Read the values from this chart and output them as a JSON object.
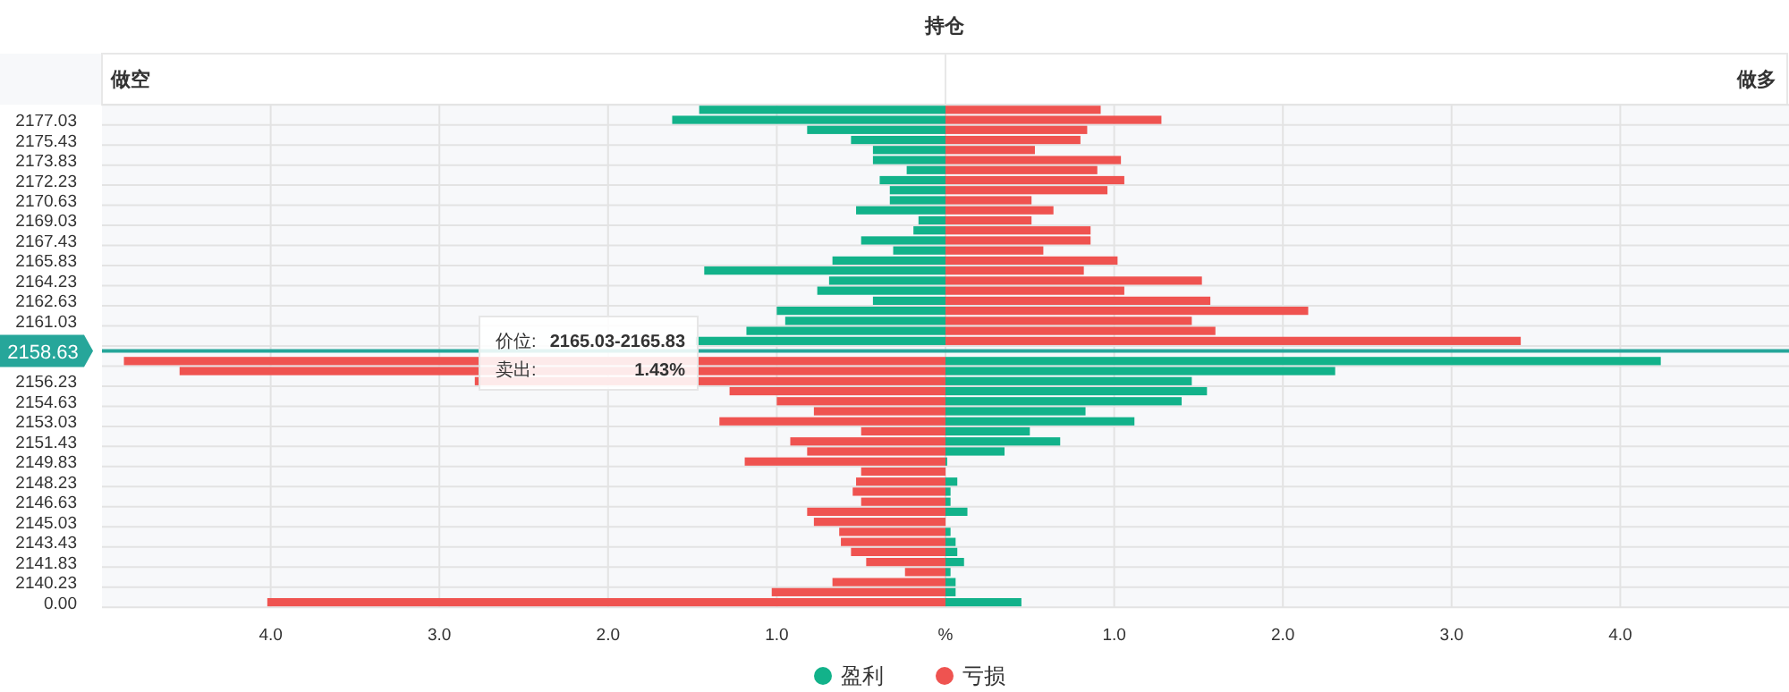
{
  "chart_data": {
    "type": "bar",
    "orientation": "horizontal",
    "title": "持仓",
    "annotations": [
      "做空",
      "做多",
      "价位:",
      "2165.03-2165.83",
      "卖出:",
      "1.43%"
    ],
    "categories": [
      null,
      "2177.03",
      null,
      "2175.43",
      null,
      "2173.83",
      null,
      "2172.23",
      null,
      "2170.63",
      null,
      "2169.03",
      null,
      "2167.43",
      null,
      "2165.83",
      null,
      "2164.23",
      null,
      "2162.63",
      null,
      "2161.03",
      null,
      null,
      "2158.63",
      null,
      null,
      "2156.23",
      null,
      "2154.63",
      null,
      "2153.03",
      null,
      "2151.43",
      null,
      "2149.83",
      null,
      "2148.23",
      null,
      "2146.63",
      null,
      "2145.03",
      null,
      "2143.43",
      null,
      "2141.83",
      null,
      "2140.23",
      null,
      "0.00"
    ],
    "series": [
      {
        "name": "盈利",
        "color": "#12b28a",
        "values": [
          -1.46,
          -1.62,
          -0.82,
          -0.56,
          -0.43,
          -0.43,
          -0.23,
          -0.39,
          -0.33,
          -0.33,
          -0.53,
          -0.16,
          -0.19,
          -0.5,
          -0.31,
          -0.67,
          -1.43,
          -0.69,
          -0.76,
          -0.43,
          -1.0,
          -0.95,
          -1.18,
          -1.48,
          null,
          4.24,
          2.31,
          1.46,
          1.55,
          1.4,
          0.83,
          1.12,
          0.5,
          0.68,
          0.35,
          0.01,
          0,
          0.07,
          0.03,
          0.03,
          0.13,
          0,
          0.03,
          0.06,
          0.07,
          0.11,
          0.03,
          0.06,
          0.06,
          0.45
        ]
      },
      {
        "name": "亏损",
        "color": "#ef5350",
        "values": [
          0.92,
          1.28,
          0.84,
          0.8,
          0.53,
          1.04,
          0.9,
          1.06,
          0.96,
          0.51,
          0.64,
          0.51,
          0.86,
          0.86,
          0.58,
          1.02,
          0.82,
          1.52,
          1.06,
          1.57,
          2.15,
          1.46,
          1.6,
          3.41,
          null,
          -4.87,
          -4.54,
          -2.79,
          -1.28,
          -1.0,
          -0.78,
          -1.34,
          -0.5,
          -0.92,
          -0.82,
          -1.19,
          -0.5,
          -0.53,
          -0.55,
          -0.5,
          -0.82,
          -0.78,
          -0.63,
          -0.62,
          -0.56,
          -0.47,
          -0.24,
          -0.67,
          -1.03,
          -4.02
        ]
      }
    ],
    "xlim": [
      -5,
      5
    ],
    "xticks": [
      {
        "value": -4,
        "label": "4.0"
      },
      {
        "value": -3,
        "label": "3.0"
      },
      {
        "value": -2,
        "label": "2.0"
      },
      {
        "value": -1,
        "label": "1.0"
      },
      {
        "value": 0,
        "label": "%"
      },
      {
        "value": 1,
        "label": "1.0"
      },
      {
        "value": 2,
        "label": "2.0"
      },
      {
        "value": 3,
        "label": "3.0"
      },
      {
        "value": 4,
        "label": "4.0"
      }
    ],
    "ref_lines": [
      {
        "axis": "y",
        "value": "2158.63",
        "color": "#26a69a"
      }
    ],
    "stacked": true,
    "grid": true,
    "legend": "bottom"
  }
}
